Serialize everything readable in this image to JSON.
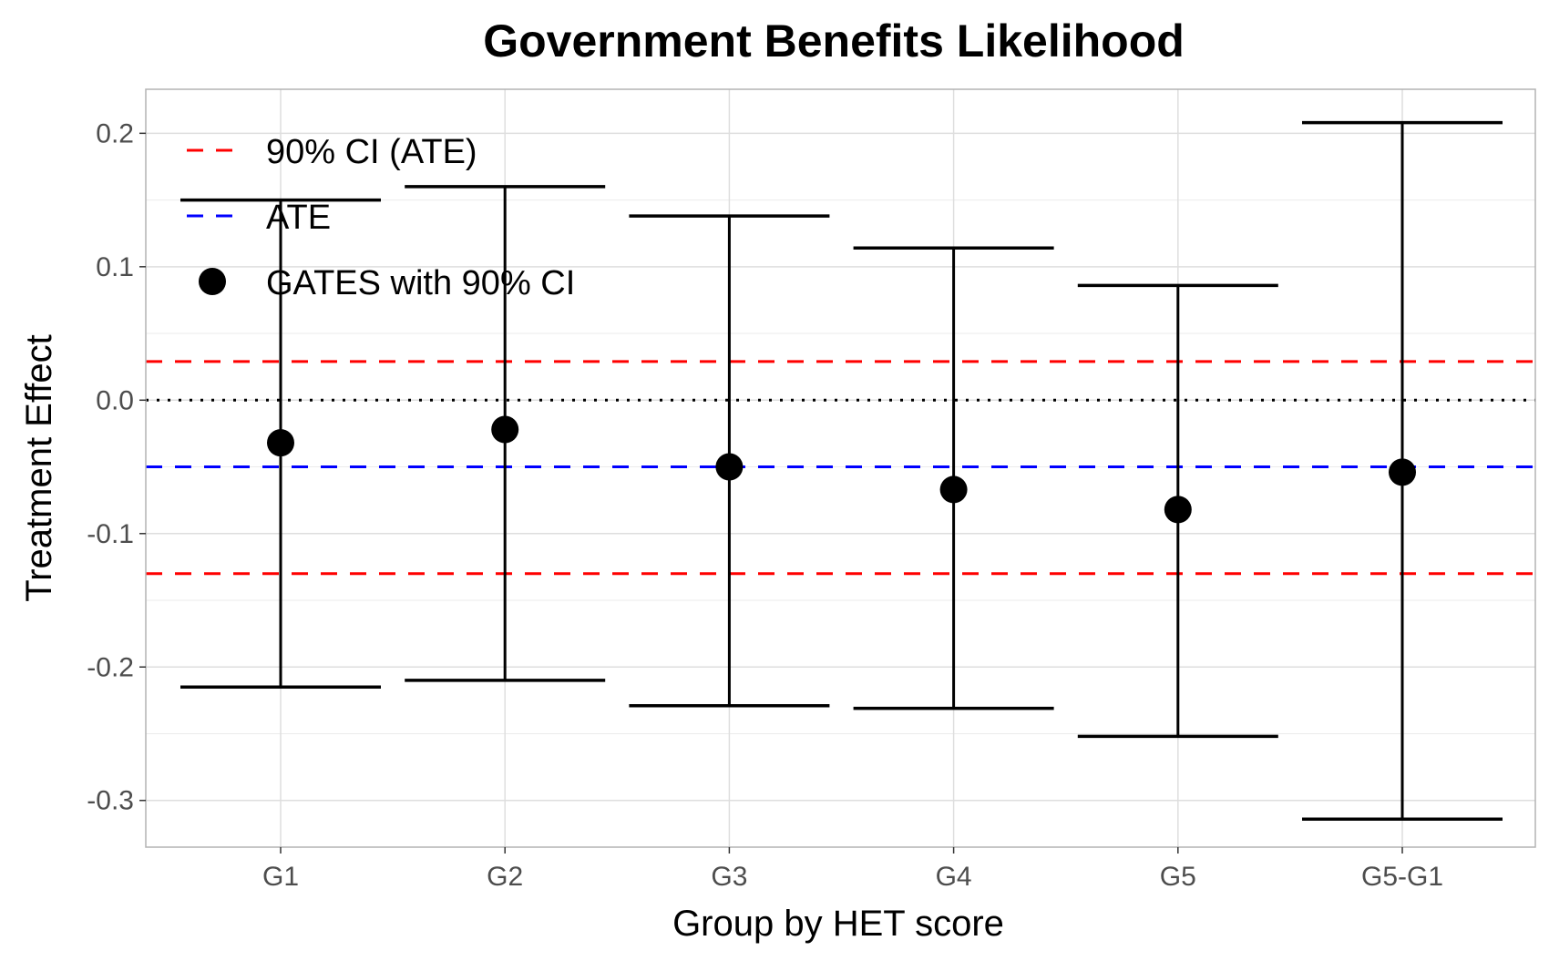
{
  "chart_data": {
    "type": "scatter",
    "title": "Government Benefits Likelihood",
    "xlabel": "Group by HET score",
    "ylabel": "Treatment Effect",
    "categories": [
      "G1",
      "G2",
      "G3",
      "G4",
      "G5",
      "G5-G1"
    ],
    "y_ticks": [
      0.2,
      0.1,
      0.0,
      -0.1,
      -0.2,
      -0.3
    ],
    "y_tick_labels": [
      "0.2",
      "0.1",
      "0.0",
      "-0.1",
      "-0.2",
      "-0.3"
    ],
    "ylim": [
      -0.335,
      0.233
    ],
    "grid": true,
    "legend_position": "top-left",
    "series": [
      {
        "name": "GATES with 90% CI",
        "estimate": [
          -0.032,
          -0.022,
          -0.05,
          -0.067,
          -0.082,
          -0.054
        ],
        "ci_low": [
          -0.215,
          -0.21,
          -0.229,
          -0.231,
          -0.252,
          -0.314
        ],
        "ci_high": [
          0.15,
          0.16,
          0.138,
          0.114,
          0.086,
          0.208
        ],
        "color": "#000000"
      }
    ],
    "reference_lines": {
      "ate": {
        "name": "ATE",
        "value": -0.05,
        "color": "#0000ff"
      },
      "ate_ci": {
        "name": "90% CI (ATE)",
        "values": [
          0.029,
          -0.13
        ],
        "color": "#ff0000"
      },
      "zero": {
        "value": 0.0,
        "color": "#000000"
      }
    },
    "legend": [
      "90% CI (ATE)",
      "ATE",
      "GATES with 90% CI"
    ]
  }
}
